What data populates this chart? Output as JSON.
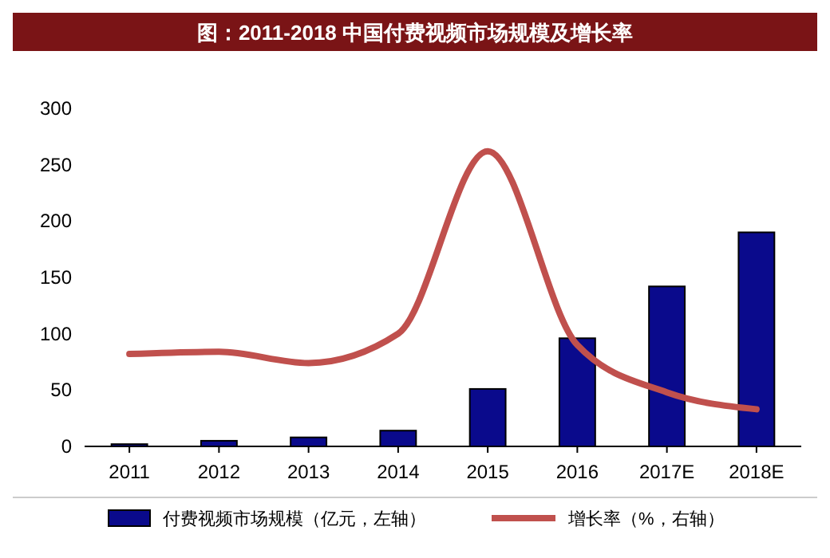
{
  "chart_data": {
    "type": "bar",
    "title": "图：2011-2018 中国付费视频市场规模及增长率",
    "categories": [
      "2011",
      "2012",
      "2013",
      "2014",
      "2015",
      "2016",
      "2017E",
      "2018E"
    ],
    "series": [
      {
        "name": "付费视频市场规模（亿元，左轴）",
        "color": "#0a0a8c",
        "values": [
          2,
          5,
          8,
          14,
          51,
          96,
          142,
          190
        ]
      },
      {
        "name": "增长率（%，右轴）",
        "type": "line",
        "color": "#c0504d",
        "values": [
          82,
          84,
          74,
          100,
          262,
          90,
          48,
          33
        ]
      }
    ],
    "ylim": [
      0,
      300
    ],
    "yticks": [
      0,
      50,
      100,
      150,
      200,
      250,
      300
    ],
    "grid": false,
    "legend": "bottom",
    "marker": "none",
    "line_style": "solid"
  }
}
